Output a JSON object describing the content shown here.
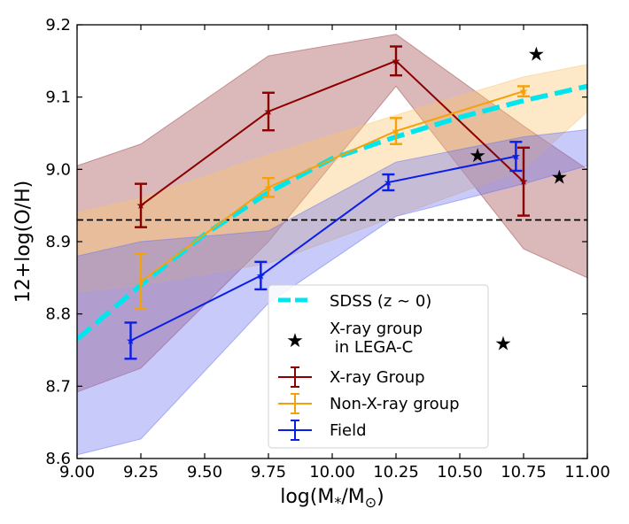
{
  "chart_data": {
    "type": "line",
    "xlabel": "log(M*/M⊙)",
    "ylabel": "12+log(O/H)",
    "xlim": [
      9.0,
      11.0
    ],
    "ylim": [
      8.6,
      9.2
    ],
    "xticks": [
      "9.00",
      "9.25",
      "9.50",
      "9.75",
      "10.00",
      "10.25",
      "10.50",
      "10.75",
      "11.00"
    ],
    "yticks": [
      "8.6",
      "8.7",
      "8.8",
      "8.9",
      "9.0",
      "9.1",
      "9.2"
    ],
    "reference_line_y": 8.93,
    "series": [
      {
        "name": "X-ray Group",
        "color": "#8b0000",
        "x": [
          9.25,
          9.75,
          10.25,
          10.75
        ],
        "y": [
          8.95,
          9.08,
          9.15,
          8.983
        ],
        "err": [
          0.03,
          0.026,
          0.02,
          0.047
        ],
        "band_upper": [
          9.035,
          9.157,
          9.187,
          9.06,
          9.0
        ],
        "band_lower": [
          8.725,
          8.9,
          9.115,
          8.89,
          8.85
        ],
        "band_x": [
          9.0,
          9.25,
          9.75,
          10.25,
          10.75,
          11.0
        ],
        "band_fill": "#a0464a",
        "band_upper_full": [
          9.005,
          9.035,
          9.157,
          9.187,
          9.06,
          9.0
        ],
        "band_lower_full": [
          8.692,
          8.725,
          8.9,
          9.115,
          8.89,
          8.85
        ]
      },
      {
        "name": "Non-X-ray group",
        "color": "#f5a20a",
        "x": [
          9.25,
          9.75,
          10.25,
          10.75
        ],
        "y": [
          8.845,
          8.975,
          9.053,
          9.108
        ],
        "err": [
          0.038,
          0.013,
          0.018,
          0.007
        ],
        "band_x": [
          9.0,
          9.25,
          9.75,
          10.25,
          10.75,
          11.0
        ],
        "band_fill": "#fbc56b",
        "band_upper_full": [
          8.94,
          8.96,
          9.02,
          9.075,
          9.128,
          9.145
        ],
        "band_lower_full": [
          8.83,
          8.84,
          8.87,
          8.935,
          9.0,
          9.08
        ]
      },
      {
        "name": "Field",
        "color": "#0b1ee8",
        "x": [
          9.21,
          9.72,
          10.22,
          10.72
        ],
        "y": [
          8.763,
          8.853,
          8.982,
          9.018
        ],
        "err": [
          0.025,
          0.019,
          0.011,
          0.02
        ],
        "band_x": [
          9.0,
          9.25,
          9.75,
          10.25,
          10.75,
          11.0
        ],
        "band_fill": "#6e73f0",
        "band_upper_full": [
          8.88,
          8.9,
          8.915,
          9.01,
          9.045,
          9.055
        ],
        "band_lower_full": [
          8.605,
          8.627,
          8.815,
          8.935,
          8.98,
          9.005
        ]
      }
    ],
    "sdss": {
      "name": "SDSS (z ∼ 0)",
      "color": "#00e5ee",
      "x": [
        9.0,
        9.25,
        9.5,
        9.75,
        10.0,
        10.25,
        10.5,
        10.75,
        11.0
      ],
      "y": [
        8.765,
        8.84,
        8.91,
        8.968,
        9.015,
        9.045,
        9.072,
        9.095,
        9.115
      ]
    },
    "stars": {
      "name_line1": "X-ray group",
      "name_line2": " in LEGA-C",
      "color": "#000000",
      "points": [
        {
          "x": 10.8,
          "y": 9.16
        },
        {
          "x": 10.57,
          "y": 9.02
        },
        {
          "x": 10.89,
          "y": 8.99
        },
        {
          "x": 10.67,
          "y": 8.76
        }
      ]
    },
    "legend": {
      "position": "bottom-center",
      "entries": [
        "SDSS (z ∼ 0)",
        "X-ray group",
        " in LEGA-C",
        "X-ray Group",
        "Non-X-ray group",
        "Field"
      ]
    }
  }
}
